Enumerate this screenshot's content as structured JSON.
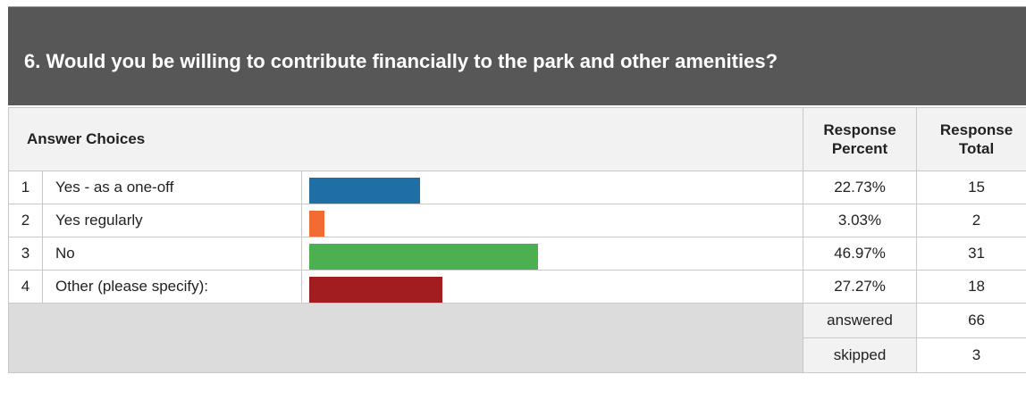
{
  "question": {
    "title": "6. Would you be willing to contribute financially to the park and other amenities?"
  },
  "table": {
    "header_choices": "Answer Choices",
    "header_percent_1": "Response",
    "header_percent_2": "Percent",
    "header_total_1": "Response",
    "header_total_2": "Total"
  },
  "chart_data": {
    "type": "bar",
    "categories": [
      "Yes - as a one-off",
      "Yes regularly",
      "No",
      "Other (please specify):"
    ],
    "values": [
      22.73,
      3.03,
      46.97,
      27.27
    ],
    "colors": [
      "#1f6fa5",
      "#f26b32",
      "#4caf50",
      "#a11d1f"
    ]
  },
  "rows": [
    {
      "index": "1",
      "label": "Yes - as a one-off",
      "percent": "22.73%",
      "total": "15"
    },
    {
      "index": "2",
      "label": "Yes regularly",
      "percent": "3.03%",
      "total": "2"
    },
    {
      "index": "3",
      "label": "No",
      "percent": "46.97%",
      "total": "31"
    },
    {
      "index": "4",
      "label": "Other (please specify):",
      "percent": "27.27%",
      "total": "18"
    }
  ],
  "summary": {
    "answered_label": "answered",
    "answered_value": "66",
    "skipped_label": "skipped",
    "skipped_value": "3"
  }
}
